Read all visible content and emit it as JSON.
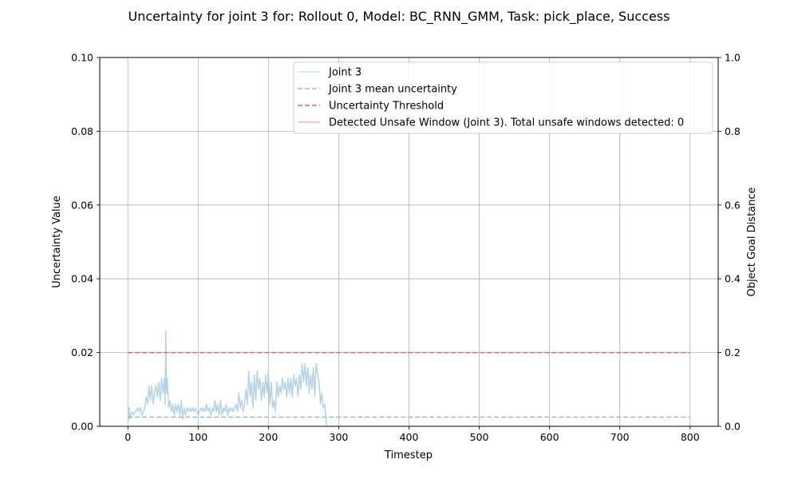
{
  "chart_data": {
    "type": "line",
    "title": "Uncertainty for joint 3 for: Rollout 0, Model: BC_RNN_GMM, Task: pick_place, Success",
    "xlabel": "Timestep",
    "ylabel": "Uncertainty Value",
    "ylabel_right": "Object Goal Distance",
    "xlim": [
      -40,
      840
    ],
    "ylim": [
      0,
      0.1
    ],
    "ylim_right": [
      0,
      1.0
    ],
    "grid": true,
    "legend_position": "top-right",
    "x_ticks": [
      0,
      100,
      200,
      300,
      400,
      500,
      600,
      700,
      800
    ],
    "x_tick_labels": [
      "0",
      "100",
      "200",
      "300",
      "400",
      "500",
      "600",
      "700",
      "800"
    ],
    "y_ticks": [
      0,
      0.02,
      0.04,
      0.06,
      0.08,
      0.1
    ],
    "y_tick_labels": [
      "0.00",
      "0.02",
      "0.04",
      "0.06",
      "0.08",
      "0.10"
    ],
    "y_ticks_right": [
      0,
      0.2,
      0.4,
      0.6,
      0.8,
      1.0
    ],
    "y_tick_labels_right": [
      "0.0",
      "0.2",
      "0.4",
      "0.6",
      "0.8",
      "1.0"
    ],
    "series": [
      {
        "name": "Joint 3",
        "style": "solid",
        "color": "#b5d3e7",
        "x": [
          0,
          1,
          2,
          3,
          4,
          6,
          8,
          10,
          12,
          14,
          16,
          18,
          20,
          22,
          24,
          26,
          28,
          30,
          32,
          34,
          36,
          38,
          40,
          42,
          44,
          46,
          48,
          50,
          52,
          53,
          54,
          55,
          56,
          58,
          60,
          62,
          64,
          66,
          68,
          70,
          72,
          74,
          76,
          78,
          80,
          82,
          84,
          86,
          88,
          90,
          92,
          94,
          96,
          98,
          100,
          102,
          104,
          106,
          108,
          110,
          112,
          114,
          116,
          118,
          120,
          122,
          124,
          126,
          128,
          130,
          132,
          134,
          136,
          138,
          140,
          142,
          144,
          146,
          148,
          150,
          152,
          154,
          156,
          158,
          160,
          162,
          164,
          166,
          168,
          170,
          172,
          174,
          176,
          178,
          180,
          182,
          184,
          186,
          188,
          190,
          192,
          194,
          196,
          198,
          200,
          202,
          204,
          206,
          208,
          210,
          212,
          214,
          216,
          218,
          220,
          222,
          224,
          226,
          228,
          230,
          232,
          234,
          236,
          238,
          240,
          242,
          244,
          246,
          248,
          250,
          252,
          254,
          256,
          258,
          260,
          262,
          264,
          266,
          268,
          270,
          272,
          274,
          276,
          278,
          280,
          281,
          282,
          283
        ],
        "y": [
          0.006,
          0.002,
          0.005,
          0.002,
          0.003,
          0.004,
          0.003,
          0.004,
          0.004,
          0.005,
          0.004,
          0.005,
          0.003,
          0.004,
          0.005,
          0.008,
          0.006,
          0.011,
          0.007,
          0.011,
          0.006,
          0.009,
          0.011,
          0.008,
          0.012,
          0.007,
          0.013,
          0.009,
          0.013,
          0.006,
          0.026,
          0.009,
          0.013,
          0.005,
          0.007,
          0.004,
          0.006,
          0.003,
          0.006,
          0.004,
          0.006,
          0.003,
          0.007,
          0.002,
          0.005,
          0.003,
          0.005,
          0.004,
          0.005,
          0.004,
          0.005,
          0.004,
          0.005,
          0.004,
          0.003,
          0.004,
          0.005,
          0.004,
          0.005,
          0.004,
          0.006,
          0.004,
          0.005,
          0.003,
          0.005,
          0.004,
          0.007,
          0.004,
          0.006,
          0.003,
          0.007,
          0.003,
          0.005,
          0.004,
          0.006,
          0.003,
          0.005,
          0.004,
          0.005,
          0.004,
          0.005,
          0.006,
          0.004,
          0.009,
          0.005,
          0.007,
          0.004,
          0.006,
          0.01,
          0.006,
          0.015,
          0.008,
          0.012,
          0.005,
          0.014,
          0.007,
          0.015,
          0.01,
          0.013,
          0.007,
          0.012,
          0.008,
          0.014,
          0.009,
          0.015,
          0.006,
          0.012,
          0.005,
          0.007,
          0.004,
          0.012,
          0.008,
          0.011,
          0.009,
          0.013,
          0.01,
          0.012,
          0.008,
          0.013,
          0.009,
          0.013,
          0.008,
          0.014,
          0.011,
          0.013,
          0.008,
          0.014,
          0.01,
          0.017,
          0.012,
          0.017,
          0.011,
          0.016,
          0.009,
          0.014,
          0.01,
          0.016,
          0.008,
          0.017,
          0.014,
          0.012,
          0.006,
          0.009,
          0.005,
          0.006,
          0.004,
          0.002,
          0.0
        ]
      },
      {
        "name": "Joint 3 mean uncertainty",
        "style": "dashed",
        "color": "#8fbadd",
        "x": [
          0,
          800
        ],
        "y": [
          0.0025,
          0.0025
        ]
      },
      {
        "name": "Uncertainty Threshold",
        "style": "dashed",
        "color": "#e8685c",
        "x": [
          0,
          800
        ],
        "y": [
          0.02,
          0.02
        ]
      },
      {
        "name": "Detected Unsafe Window (Joint 3). Total unsafe windows detected: 0",
        "style": "solid",
        "color": "#f08a9a",
        "x": [],
        "y": []
      }
    ]
  }
}
